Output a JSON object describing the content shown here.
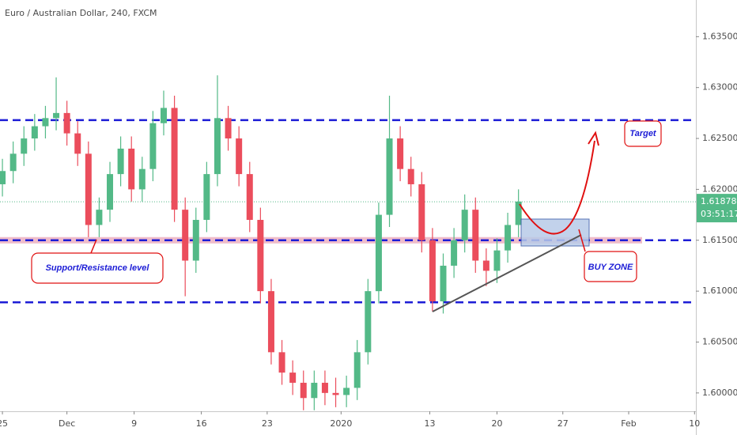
{
  "chart_data": {
    "type": "candlestick",
    "title": "Euro / Australian Dollar, 240, FXCM",
    "x": [
      0,
      0.8,
      1.6,
      2.4,
      3.2,
      4,
      4.8,
      5.6,
      6.4,
      7.2,
      8,
      8.8,
      9.6,
      10.4,
      11.2,
      12,
      12.8,
      13.6,
      14.4,
      15.2,
      16,
      16.8,
      17.6,
      18.4,
      19.2,
      20,
      20.8,
      21.6,
      22.4,
      23.2,
      24,
      24.8,
      25.6,
      26.4,
      27.2,
      28,
      28.8,
      29.6,
      30.4,
      31.2,
      32,
      32.8,
      33.6,
      34.4,
      35.2,
      36,
      36.8,
      37.6,
      38.4
    ],
    "open": [
      1.6205,
      1.6218,
      1.6235,
      1.625,
      1.6262,
      1.627,
      1.6275,
      1.6255,
      1.6235,
      1.6165,
      1.618,
      1.6215,
      1.624,
      1.62,
      1.622,
      1.6265,
      1.628,
      1.618,
      1.613,
      1.617,
      1.6215,
      1.627,
      1.625,
      1.6215,
      1.617,
      1.61,
      1.604,
      1.602,
      1.601,
      1.5995,
      1.601,
      1.6,
      1.5998,
      1.6005,
      1.604,
      1.61,
      1.6175,
      1.625,
      1.622,
      1.6205,
      1.615,
      1.609,
      1.6125,
      1.615,
      1.618,
      1.613,
      1.612,
      1.614,
      1.6165
    ],
    "high": [
      1.623,
      1.6247,
      1.6262,
      1.6274,
      1.6282,
      1.631,
      1.6287,
      1.6267,
      1.6247,
      1.6192,
      1.6227,
      1.6252,
      1.6252,
      1.6232,
      1.6277,
      1.6297,
      1.6292,
      1.6192,
      1.6182,
      1.6227,
      1.6312,
      1.6282,
      1.6262,
      1.6227,
      1.6182,
      1.6112,
      1.6052,
      1.6032,
      1.6022,
      1.6022,
      1.6022,
      1.6015,
      1.6017,
      1.6052,
      1.6112,
      1.6187,
      1.6292,
      1.6262,
      1.6232,
      1.6217,
      1.6162,
      1.6137,
      1.6162,
      1.6195,
      1.6192,
      1.6142,
      1.6152,
      1.6177,
      1.62
    ],
    "low": [
      1.6193,
      1.6206,
      1.6223,
      1.6238,
      1.625,
      1.6258,
      1.6243,
      1.6223,
      1.6153,
      1.6153,
      1.6168,
      1.6203,
      1.6188,
      1.6188,
      1.6208,
      1.6253,
      1.6168,
      1.6095,
      1.6118,
      1.6158,
      1.6203,
      1.6238,
      1.6203,
      1.6158,
      1.6088,
      1.6028,
      1.6008,
      1.5998,
      1.5983,
      1.5983,
      1.5988,
      1.5986,
      1.5986,
      1.5993,
      1.6028,
      1.6088,
      1.6163,
      1.6208,
      1.6193,
      1.6138,
      1.608,
      1.6078,
      1.6113,
      1.6138,
      1.6118,
      1.6105,
      1.6108,
      1.6128,
      1.6153
    ],
    "close": [
      1.6218,
      1.6235,
      1.625,
      1.6262,
      1.627,
      1.6275,
      1.6255,
      1.6235,
      1.6165,
      1.618,
      1.6215,
      1.624,
      1.62,
      1.622,
      1.6265,
      1.628,
      1.618,
      1.613,
      1.617,
      1.6215,
      1.627,
      1.625,
      1.6215,
      1.617,
      1.61,
      1.604,
      1.602,
      1.601,
      1.5995,
      1.601,
      1.6,
      1.5998,
      1.6005,
      1.604,
      1.61,
      1.6175,
      1.625,
      1.622,
      1.6205,
      1.615,
      1.609,
      1.6125,
      1.615,
      1.618,
      1.613,
      1.612,
      1.614,
      1.6165,
      1.6188
    ],
    "up_color": "#53b987",
    "down_color": "#eb4d5c",
    "levels": [
      1.6268,
      1.615,
      1.6089
    ],
    "level_color": "#1c1cd6",
    "last_price": {
      "value": 1.61878,
      "label": "1.61878"
    },
    "countdown": "03:51:17",
    "ylim": [
      1.5982,
      1.6386
    ],
    "yticks": [
      {
        "value": 1.635,
        "label": "1.63500"
      },
      {
        "value": 1.63,
        "label": "1.63000"
      },
      {
        "value": 1.625,
        "label": "1.62500"
      },
      {
        "value": 1.62,
        "label": "1.62000"
      },
      {
        "value": 1.615,
        "label": "1.61500"
      },
      {
        "value": 1.61,
        "label": "1.61000"
      },
      {
        "value": 1.605,
        "label": "1.60500"
      },
      {
        "value": 1.6,
        "label": "1.60000"
      }
    ],
    "xlim": [
      -0.18,
      51.6
    ],
    "xticks": [
      {
        "value": 0,
        "label": "25"
      },
      {
        "value": 4.8,
        "label": "Dec"
      },
      {
        "value": 9.8,
        "label": "9"
      },
      {
        "value": 14.8,
        "label": "16"
      },
      {
        "value": 19.7,
        "label": "23"
      },
      {
        "value": 25.2,
        "label": "2020"
      },
      {
        "value": 31.8,
        "label": "13"
      },
      {
        "value": 36.8,
        "label": "20"
      },
      {
        "value": 41.7,
        "label": "27"
      },
      {
        "value": 46.6,
        "label": "Feb"
      },
      {
        "value": 51.5,
        "label": "10"
      }
    ],
    "annotations": [
      "Target",
      "Support/Resistance level",
      "BUY ZONE"
    ]
  }
}
